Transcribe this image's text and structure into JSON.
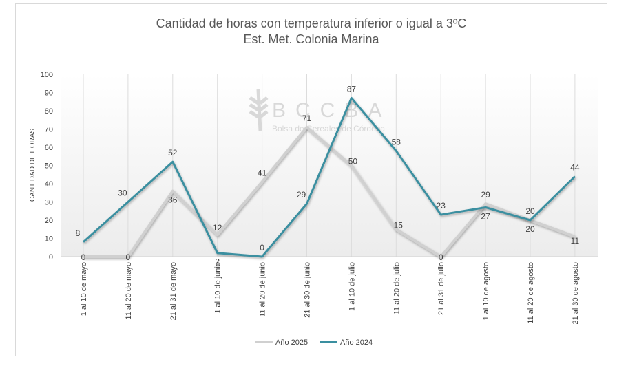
{
  "chart_data": {
    "type": "line",
    "title": "Cantidad de horas con temperatura inferior o igual a 3ºC",
    "subtitle": "Est. Met. Colonia Marina",
    "xlabel": "",
    "ylabel": "CANTIDAD DE HORAS",
    "ylim": [
      0,
      100
    ],
    "yticks": [
      0,
      10,
      20,
      30,
      40,
      50,
      60,
      70,
      80,
      90,
      100
    ],
    "grid": "vertical",
    "legend_position": "bottom",
    "categories": [
      "1 al 10 de mayo",
      "11 al 20 de mayo",
      "21 al 31 de mayo",
      "1 al 10 de junio",
      "11 al 20 de junio",
      "21 al 30 de junio",
      "1 al 10 de julio",
      "11 al 20 de julio",
      "21 al 31 de julio",
      "1 al 10 de agosto",
      "11 al 20 de agosto",
      "21 al 30 de agosto"
    ],
    "series": [
      {
        "name": "Año 2025",
        "color": "#d0d0d0",
        "values": [
          0,
          0,
          36,
          12,
          41,
          71,
          50,
          15,
          0,
          29,
          20,
          11
        ]
      },
      {
        "name": "Año 2024",
        "color": "#3a8fa0",
        "values": [
          8,
          30,
          52,
          2,
          0,
          29,
          87,
          58,
          23,
          27,
          20,
          44
        ]
      }
    ]
  },
  "watermark": {
    "logo": "BCCBA",
    "text": "Bolsa de Cereales de Córdoba"
  }
}
